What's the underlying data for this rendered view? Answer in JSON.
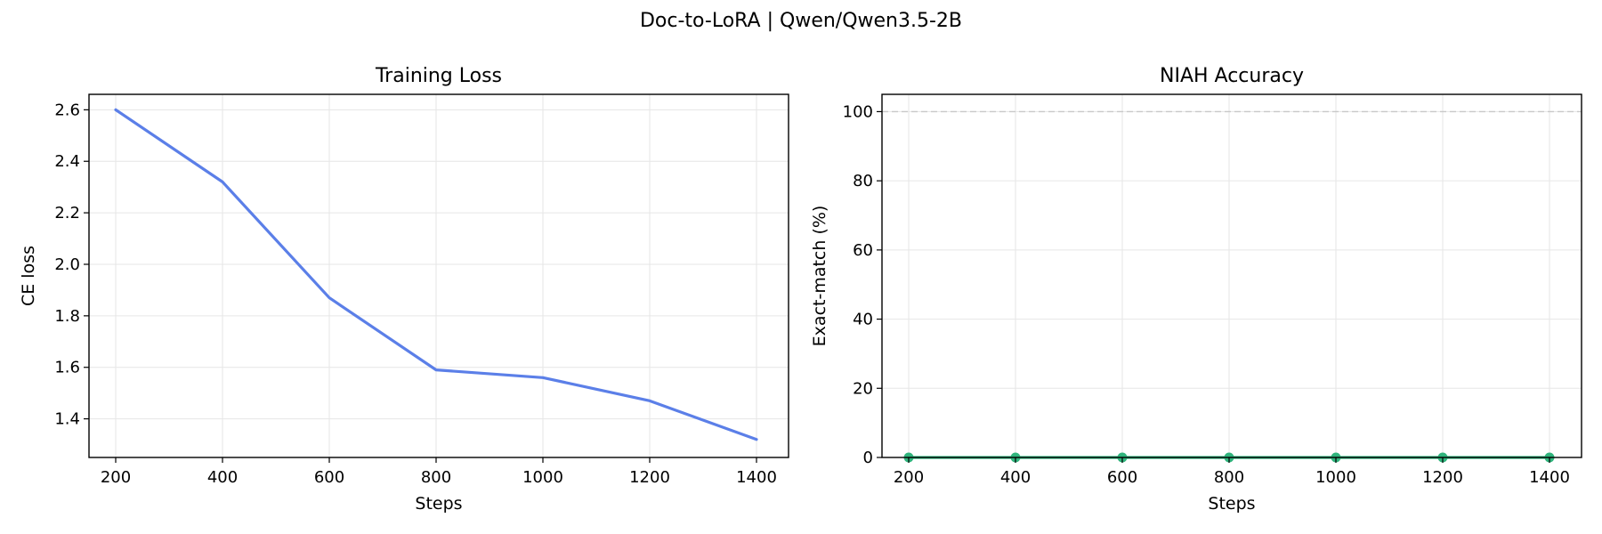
{
  "figure": {
    "title": "Doc-to-LoRA  |  Qwen/Qwen3.5-2B"
  },
  "chart_data": [
    {
      "type": "line",
      "title": "Training Loss",
      "xlabel": "Steps",
      "ylabel": "CE loss",
      "x": [
        200,
        400,
        600,
        800,
        1000,
        1200,
        1400
      ],
      "series": [
        {
          "values": [
            2.6,
            2.32,
            1.87,
            1.59,
            1.56,
            1.47,
            1.32
          ],
          "color": "#5b7fe8",
          "markers": false
        }
      ],
      "xlim": [
        150,
        1460
      ],
      "ylim": [
        1.25,
        2.66
      ],
      "xticks": [
        200,
        400,
        600,
        800,
        1000,
        1200,
        1400
      ],
      "yticks": [
        1.4,
        1.6,
        1.8,
        2.0,
        2.2,
        2.4,
        2.6
      ],
      "ytick_decimals": 1,
      "grid": true,
      "reference_line": null
    },
    {
      "type": "line",
      "title": "NIAH Accuracy",
      "xlabel": "Steps",
      "ylabel": "Exact-match (%)",
      "x": [
        200,
        400,
        600,
        800,
        1000,
        1200,
        1400
      ],
      "series": [
        {
          "values": [
            0,
            0,
            0,
            0,
            0,
            0,
            0
          ],
          "color": "#2fb47c",
          "markers": true
        }
      ],
      "xlim": [
        150,
        1460
      ],
      "ylim": [
        0,
        105
      ],
      "xticks": [
        200,
        400,
        600,
        800,
        1000,
        1200,
        1400
      ],
      "yticks": [
        0,
        20,
        40,
        60,
        80,
        100
      ],
      "ytick_decimals": 0,
      "grid": true,
      "reference_line": {
        "y": 100,
        "style": "dashed",
        "color": "#c8c8c8"
      }
    }
  ]
}
